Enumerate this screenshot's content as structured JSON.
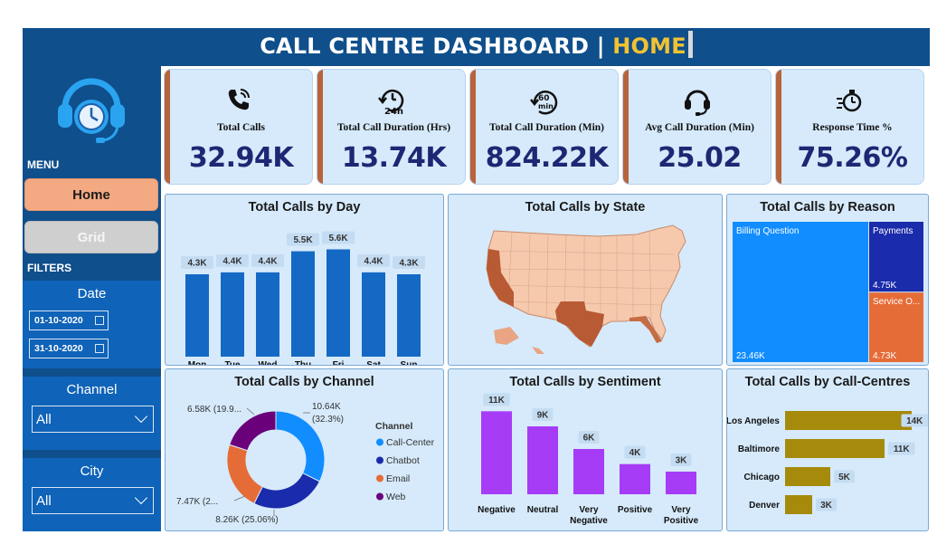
{
  "header": {
    "title": "CALL CENTRE DASHBOARD",
    "separator": "|",
    "page": "HOME"
  },
  "sidebar": {
    "menu_label": "MENU",
    "nav": [
      {
        "label": "Home",
        "active": true
      },
      {
        "label": "Grid",
        "active": false
      }
    ],
    "filters_label": "FILTERS",
    "date": {
      "label": "Date",
      "start": "01-10-2020",
      "end": "31-10-2020"
    },
    "channel": {
      "label": "Channel",
      "value": "All"
    },
    "city": {
      "label": "City",
      "value": "All"
    }
  },
  "kpis": [
    {
      "label": "Total Calls",
      "value": "32.94K",
      "icon": "phone-ringing-icon"
    },
    {
      "label": "Total Call Duration (Hrs)",
      "value": "13.74K",
      "icon": "clock-24h-icon"
    },
    {
      "label": "Total Call Duration (Min)",
      "value": "824.22K",
      "icon": "clock-60min-icon"
    },
    {
      "label": "Avg Call Duration (Min)",
      "value": "25.02",
      "icon": "headset-icon"
    },
    {
      "label": "Response Time %",
      "value": "75.26%",
      "icon": "stopwatch-icon"
    }
  ],
  "colors": {
    "navy": "#0f4f8b",
    "panel": "#d6eafb",
    "kpi_accent": "#b7643c",
    "kpi_value": "#1c2873",
    "bar_blue": "#1469c4",
    "sentiment_purple": "#a63cf6",
    "centre_gold": "#a68a0c",
    "treemap_blue": "#118dff",
    "treemap_navy": "#1a2bab",
    "treemap_orange": "#e66c37"
  },
  "chart_data": [
    {
      "type": "bar",
      "title": "Total Calls by Day",
      "categories": [
        "Mon",
        "Tue",
        "Wed",
        "Thu",
        "Fri",
        "Sat",
        "Sun"
      ],
      "values": [
        4300,
        4400,
        4400,
        5500,
        5600,
        4400,
        4300
      ],
      "data_labels": [
        "4.3K",
        "4.4K",
        "4.4K",
        "5.5K",
        "5.6K",
        "4.4K",
        "4.3K"
      ],
      "ylim": [
        0,
        6000
      ]
    },
    {
      "type": "map",
      "title": "Total Calls by State",
      "highlighted_states": [
        "California",
        "Texas",
        "Florida"
      ]
    },
    {
      "type": "treemap",
      "title": "Total Calls by Reason",
      "items": [
        {
          "name": "Billing Question",
          "value": 23460,
          "label": "23.46K"
        },
        {
          "name": "Payments",
          "value": 4750,
          "label": "4.75K"
        },
        {
          "name": "Service O...",
          "value": 4730,
          "label": "4.73K"
        }
      ]
    },
    {
      "type": "pie",
      "title": "Total Calls by Channel",
      "legend_title": "Channel",
      "slices": [
        {
          "name": "Call-Center",
          "value": 10640,
          "label": "10.64K",
          "pct": "(32.3%)",
          "color": "#118dff"
        },
        {
          "name": "Chatbot",
          "value": 8260,
          "label": "8.26K (25.06%)",
          "color": "#1a2bab"
        },
        {
          "name": "Email",
          "value": 7470,
          "label": "7.47K (2...",
          "color": "#e66c37"
        },
        {
          "name": "Web",
          "value": 6580,
          "label": "6.58K (19.9...",
          "color": "#6b007b"
        }
      ]
    },
    {
      "type": "bar",
      "title": "Total Calls by Sentiment",
      "categories": [
        "Negative",
        "Neutral",
        "Very Negative",
        "Positive",
        "Very Positive"
      ],
      "values": [
        11000,
        9000,
        6000,
        4000,
        3000
      ],
      "data_labels": [
        "11K",
        "9K",
        "6K",
        "4K",
        "3K"
      ],
      "ylim": [
        0,
        12000
      ]
    },
    {
      "type": "bar",
      "orientation": "horizontal",
      "title": "Total Calls by Call-Centres",
      "categories": [
        "Los Angeles",
        "Baltimore",
        "Chicago",
        "Denver"
      ],
      "values": [
        14000,
        11000,
        5000,
        3000
      ],
      "data_labels": [
        "14K",
        "11K",
        "5K",
        "3K"
      ],
      "xlim": [
        0,
        14500
      ]
    }
  ]
}
